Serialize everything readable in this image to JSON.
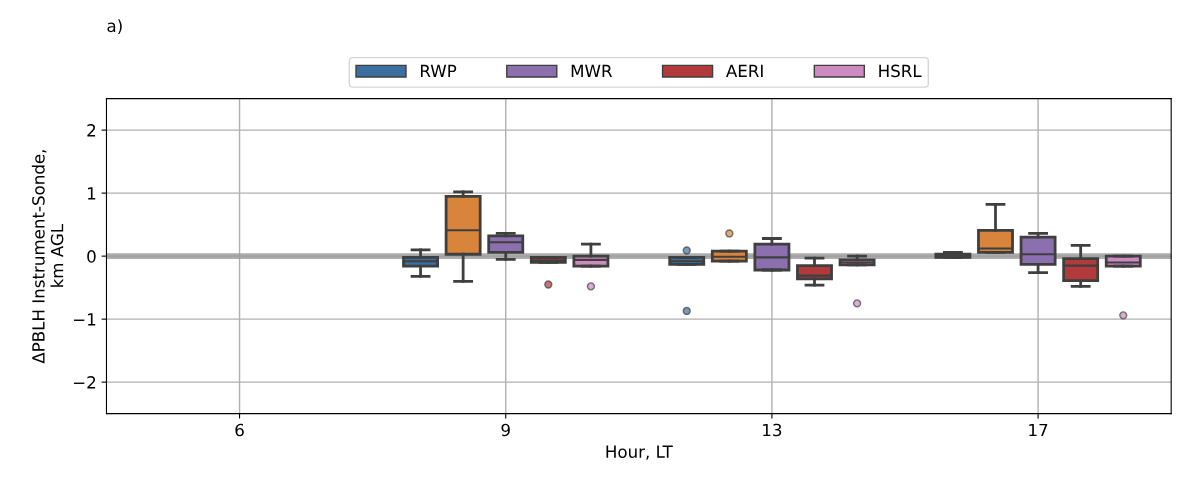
{
  "chart_data": {
    "type": "box",
    "title": "a)",
    "xlabel": "Hour, LT",
    "ylabel": "ΔPBLH Instrument-Sonde,\nkm AGL",
    "categories": [
      "6",
      "9",
      "13",
      "17"
    ],
    "ylim": [
      -2.5,
      2.5
    ],
    "yticks": [
      {
        "value": -2,
        "label": "−2"
      },
      {
        "value": -1,
        "label": "−1"
      },
      0,
      1,
      2
    ],
    "grid": true,
    "legend": "top",
    "ref_lines": [
      {
        "axis": "y",
        "value": 0,
        "color": "#999999"
      }
    ],
    "series": [
      {
        "name": "RWP",
        "color": "#3b6fa0",
        "boxes": [
          null,
          {
            "low": -0.32,
            "q1": -0.16,
            "median": -0.08,
            "q3": -0.02,
            "high": 0.1
          },
          {
            "low": -0.13,
            "q1": -0.13,
            "median": -0.08,
            "q3": -0.02,
            "high": -0.02,
            "outliers": [
              0.09,
              -0.87
            ]
          },
          {
            "low": -0.02,
            "q1": -0.02,
            "median": 0.0,
            "q3": 0.03,
            "high": 0.06
          }
        ]
      },
      {
        "color": "#d8843b",
        "boxes": [
          null,
          {
            "low": -0.4,
            "q1": 0.03,
            "median": 0.41,
            "q3": 0.95,
            "high": 1.02
          },
          {
            "low": -0.08,
            "q1": -0.08,
            "median": -0.01,
            "q3": 0.08,
            "high": 0.08,
            "outliers": [
              0.36
            ]
          },
          {
            "low": 0.06,
            "q1": 0.06,
            "median": 0.12,
            "q3": 0.41,
            "high": 0.82
          }
        ]
      },
      {
        "name": "MWR",
        "color": "#8b6fae",
        "boxes": [
          null,
          {
            "low": -0.05,
            "q1": 0.06,
            "median": 0.22,
            "q3": 0.32,
            "high": 0.36
          },
          {
            "low": -0.22,
            "q1": -0.22,
            "median": -0.02,
            "q3": 0.19,
            "high": 0.28
          },
          {
            "low": -0.26,
            "q1": -0.13,
            "median": 0.03,
            "q3": 0.3,
            "high": 0.36
          }
        ]
      },
      {
        "name": "AERI",
        "color": "#b33a3a",
        "boxes": [
          null,
          {
            "low": -0.1,
            "q1": -0.1,
            "median": -0.07,
            "q3": -0.02,
            "high": -0.02,
            "outliers": [
              -0.45
            ]
          },
          {
            "low": -0.46,
            "q1": -0.36,
            "median": -0.31,
            "q3": -0.15,
            "high": -0.03
          },
          {
            "low": -0.48,
            "q1": -0.39,
            "median": -0.15,
            "q3": -0.04,
            "high": 0.17
          }
        ]
      },
      {
        "name": "HSRL",
        "color": "#cc8ac0",
        "boxes": [
          null,
          {
            "low": -0.16,
            "q1": -0.16,
            "median": -0.06,
            "q3": 0.0,
            "high": 0.19,
            "outliers": [
              -0.48
            ]
          },
          {
            "low": -0.14,
            "q1": -0.14,
            "median": -0.1,
            "q3": -0.06,
            "high": 0.0,
            "outliers": [
              -0.75
            ]
          },
          {
            "low": -0.16,
            "q1": -0.16,
            "median": -0.1,
            "q3": 0.0,
            "high": 0.0,
            "outliers": [
              -0.94
            ]
          }
        ]
      }
    ]
  }
}
